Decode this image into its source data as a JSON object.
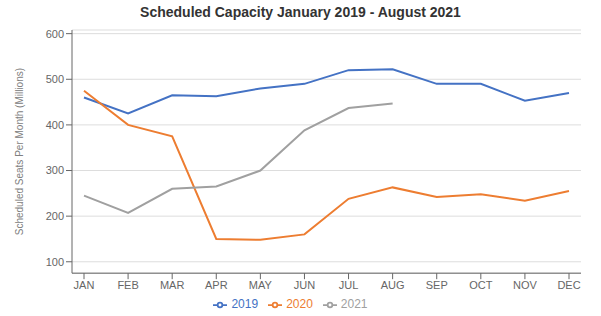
{
  "chart_data": {
    "type": "line",
    "title": "Scheduled Capacity January 2019  - August 2021",
    "ylabel": "Scheduled Seats Per Month (Millions)",
    "categories": [
      "JAN",
      "FEB",
      "MAR",
      "APR",
      "MAY",
      "JUN",
      "JUL",
      "AUG",
      "SEP",
      "OCT",
      "NOV",
      "DEC"
    ],
    "series": [
      {
        "name": "2019",
        "color": "#4472C4",
        "values": [
          460,
          425,
          465,
          463,
          480,
          490,
          520,
          522,
          490,
          490,
          453,
          470
        ]
      },
      {
        "name": "2020",
        "color": "#ED7D31",
        "values": [
          475,
          400,
          375,
          150,
          148,
          160,
          238,
          263,
          242,
          248,
          234,
          255
        ]
      },
      {
        "name": "2021",
        "color": "#A0A0A0",
        "values": [
          245,
          207,
          260,
          265,
          300,
          388,
          437,
          447,
          null,
          null,
          null,
          null
        ]
      }
    ],
    "ylim": [
      75,
      608
    ],
    "yticks": [
      100,
      200,
      300,
      400,
      500,
      600
    ],
    "grid": true,
    "legend": "bottom"
  }
}
